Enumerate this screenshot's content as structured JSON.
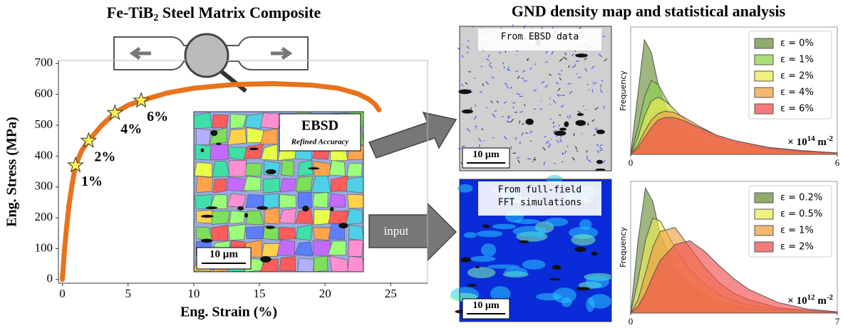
{
  "left_title": {
    "main": "Fe-TiB",
    "sub": "2",
    "rest": " Steel Matrix Composite"
  },
  "right_title": "GND density map and statistical analysis",
  "ebsd_map": {
    "label": "EBSD",
    "sublabel": "Refined Accuracy",
    "scale": "10 µm"
  },
  "gnd_maps": [
    {
      "caption": [
        "From EBSD data"
      ],
      "scale": "10 µm"
    },
    {
      "caption": [
        "From full-field",
        "FFT simulations"
      ],
      "scale": "10 µm"
    }
  ],
  "arrow_label": "input",
  "chart_data": [
    {
      "type": "line",
      "xlabel": "Eng. Strain (%)",
      "ylabel": "Eng. Stress (MPa)",
      "xlim": [
        -0.3,
        27.8
      ],
      "ylim": [
        -12,
        710
      ],
      "xticks": [
        0,
        5,
        10,
        15,
        20,
        25
      ],
      "yticks": [
        0,
        100,
        200,
        300,
        400,
        500,
        600,
        700
      ],
      "line": {
        "color": "#e8731c",
        "x": [
          0,
          0.15,
          0.3,
          0.5,
          0.75,
          1,
          1.5,
          2,
          3,
          4,
          5,
          6,
          8,
          10,
          13,
          16,
          19,
          21,
          22.5,
          23.3,
          23.8,
          24.1
        ],
        "values": [
          0,
          90,
          160,
          240,
          310,
          370,
          420,
          450,
          500,
          540,
          565,
          580,
          605,
          620,
          632,
          635,
          630,
          620,
          602,
          585,
          568,
          550
        ]
      },
      "points": {
        "color": "#ffee55",
        "x": [
          1,
          2,
          4,
          6
        ],
        "values": [
          370,
          450,
          540,
          580
        ],
        "labels": [
          "1%",
          "2%",
          "4%",
          "6%"
        ]
      }
    },
    {
      "type": "area",
      "ylabel": "Frequency",
      "unit_label": {
        "base": "× 10",
        "exp": "14",
        "unit": " m",
        "unit_exp": "-2"
      },
      "xlim": [
        0,
        6
      ],
      "ylim": [
        0,
        1
      ],
      "xticks": [
        0,
        6
      ],
      "legend": "upper right",
      "x": [
        0,
        0.2,
        0.4,
        0.6,
        0.8,
        1,
        1.25,
        1.5,
        2,
        2.5,
        3,
        4,
        5,
        6
      ],
      "series": [
        {
          "name": "ε = 0%",
          "color": "#6b8f3a",
          "values": [
            0,
            0.45,
            0.9,
            0.8,
            0.55,
            0.38,
            0.26,
            0.19,
            0.11,
            0.07,
            0.05,
            0.02,
            0.01,
            0
          ]
        },
        {
          "name": "ε = 1%",
          "color": "#8fd14f",
          "values": [
            0,
            0.2,
            0.45,
            0.58,
            0.55,
            0.45,
            0.34,
            0.26,
            0.16,
            0.1,
            0.07,
            0.03,
            0.015,
            0.005
          ]
        },
        {
          "name": "ε = 2%",
          "color": "#ecec55",
          "values": [
            0,
            0.12,
            0.3,
            0.42,
            0.45,
            0.42,
            0.36,
            0.29,
            0.19,
            0.13,
            0.09,
            0.04,
            0.02,
            0.008
          ]
        },
        {
          "name": "ε = 4%",
          "color": "#f0a040",
          "values": [
            0,
            0.07,
            0.18,
            0.27,
            0.32,
            0.34,
            0.33,
            0.3,
            0.22,
            0.15,
            0.11,
            0.05,
            0.025,
            0.01
          ]
        },
        {
          "name": "ε = 6%",
          "color": "#f05050",
          "values": [
            0,
            0.05,
            0.13,
            0.21,
            0.27,
            0.29,
            0.29,
            0.27,
            0.21,
            0.15,
            0.11,
            0.055,
            0.03,
            0.012
          ]
        }
      ]
    },
    {
      "type": "area",
      "ylabel": "Frequency",
      "unit_label": {
        "base": "× 10",
        "exp": "12",
        "unit": " m",
        "unit_exp": "-2"
      },
      "xlim": [
        0,
        7
      ],
      "ylim": [
        0,
        1
      ],
      "xticks": [
        0,
        7
      ],
      "legend": "upper right",
      "x": [
        0,
        0.25,
        0.5,
        0.75,
        1,
        1.5,
        2,
        2.5,
        3,
        3.5,
        4,
        5,
        6,
        7
      ],
      "series": [
        {
          "name": "ε = 0.2%",
          "color": "#6b8f3a",
          "values": [
            0,
            0.55,
            0.95,
            0.85,
            0.6,
            0.35,
            0.22,
            0.14,
            0.09,
            0.06,
            0.04,
            0.02,
            0.01,
            0
          ]
        },
        {
          "name": "ε = 0.5%",
          "color": "#ecec55",
          "values": [
            0,
            0.25,
            0.55,
            0.72,
            0.7,
            0.5,
            0.33,
            0.22,
            0.14,
            0.09,
            0.06,
            0.03,
            0.01,
            0.005
          ]
        },
        {
          "name": "ε = 1%",
          "color": "#f0a040",
          "values": [
            0,
            0.1,
            0.3,
            0.5,
            0.62,
            0.65,
            0.5,
            0.35,
            0.23,
            0.15,
            0.1,
            0.04,
            0.02,
            0.005
          ]
        },
        {
          "name": "ε = 2%",
          "color": "#f05050",
          "values": [
            0,
            0.05,
            0.15,
            0.28,
            0.4,
            0.52,
            0.55,
            0.47,
            0.36,
            0.26,
            0.18,
            0.08,
            0.03,
            0.01
          ]
        }
      ]
    }
  ]
}
